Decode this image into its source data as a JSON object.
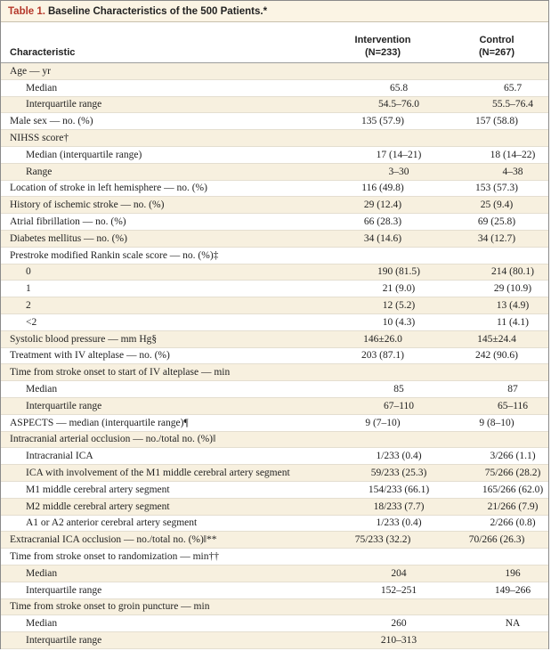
{
  "table": {
    "number": "Table 1.",
    "title": "Baseline Characteristics of the 500 Patients.*",
    "headers": {
      "characteristic": "Characteristic",
      "intervention": "Intervention",
      "intervention_n": "(N=233)",
      "control": "Control",
      "control_n": "(N=267)"
    },
    "rows": [
      {
        "label": "Age — yr",
        "intervention": "",
        "control": "",
        "indent": false
      },
      {
        "label": "Median",
        "intervention": "65.8",
        "control": "65.7",
        "indent": true
      },
      {
        "label": "Interquartile range",
        "intervention": "54.5–76.0",
        "control": "55.5–76.4",
        "indent": true
      },
      {
        "label": "Male sex — no. (%)",
        "intervention": "135 (57.9)",
        "control": "157 (58.8)",
        "indent": false
      },
      {
        "label": "NIHSS score†",
        "intervention": "",
        "control": "",
        "indent": false
      },
      {
        "label": "Median (interquartile range)",
        "intervention": "17 (14–21)",
        "control": "18 (14–22)",
        "indent": true
      },
      {
        "label": "Range",
        "intervention": "3–30",
        "control": "4–38",
        "indent": true
      },
      {
        "label": "Location of stroke in left hemisphere — no. (%)",
        "intervention": "116 (49.8)",
        "control": "153 (57.3)",
        "indent": false
      },
      {
        "label": "History of ischemic stroke — no. (%)",
        "intervention": "29 (12.4)",
        "control": "25 (9.4)",
        "indent": false
      },
      {
        "label": "Atrial fibrillation — no. (%)",
        "intervention": "66 (28.3)",
        "control": "69 (25.8)",
        "indent": false
      },
      {
        "label": "Diabetes mellitus — no. (%)",
        "intervention": "34 (14.6)",
        "control": "34 (12.7)",
        "indent": false
      },
      {
        "label": "Prestroke modified Rankin scale score — no. (%)‡",
        "intervention": "",
        "control": "",
        "indent": false
      },
      {
        "label": "0",
        "intervention": "190 (81.5)",
        "control": "214 (80.1)",
        "indent": true
      },
      {
        "label": "1",
        "intervention": "21 (9.0)",
        "control": "29 (10.9)",
        "indent": true
      },
      {
        "label": "2",
        "intervention": "12 (5.2)",
        "control": "13 (4.9)",
        "indent": true
      },
      {
        "label": "<2",
        "intervention": "10 (4.3)",
        "control": "11 (4.1)",
        "indent": true
      },
      {
        "label": "Systolic blood pressure — mm Hg§",
        "intervention": "146±26.0",
        "control": "145±24.4",
        "indent": false
      },
      {
        "label": "Treatment with IV alteplase — no. (%)",
        "intervention": "203 (87.1)",
        "control": "242 (90.6)",
        "indent": false
      },
      {
        "label": "Time from stroke onset to start of IV alteplase — min",
        "intervention": "",
        "control": "",
        "indent": false
      },
      {
        "label": "Median",
        "intervention": "85",
        "control": "87",
        "indent": true
      },
      {
        "label": "Interquartile range",
        "intervention": "67–110",
        "control": "65–116",
        "indent": true
      },
      {
        "label": "ASPECTS — median (interquartile range)¶",
        "intervention": "9 (7–10)",
        "control": "9 (8–10)",
        "indent": false
      },
      {
        "label": "Intracranial arterial occlusion — no./total no. (%)‖",
        "intervention": "",
        "control": "",
        "indent": false
      },
      {
        "label": "Intracranial ICA",
        "intervention": "1/233 (0.4)",
        "control": "3/266 (1.1)",
        "indent": true
      },
      {
        "label": "ICA with involvement of the M1 middle cerebral artery segment",
        "intervention": "59/233 (25.3)",
        "control": "75/266 (28.2)",
        "indent": true
      },
      {
        "label": "M1 middle cerebral artery segment",
        "intervention": "154/233 (66.1)",
        "control": "165/266 (62.0)",
        "indent": true
      },
      {
        "label": "M2 middle cerebral artery segment",
        "intervention": "18/233 (7.7)",
        "control": "21/266 (7.9)",
        "indent": true
      },
      {
        "label": "A1 or A2 anterior cerebral artery segment",
        "intervention": "1/233 (0.4)",
        "control": "2/266 (0.8)",
        "indent": true
      },
      {
        "label": "Extracranial ICA occlusion — no./total no. (%)‖**",
        "intervention": "75/233 (32.2)",
        "control": "70/266 (26.3)",
        "indent": false
      },
      {
        "label": "Time from stroke onset to randomization — min††",
        "intervention": "",
        "control": "",
        "indent": false
      },
      {
        "label": "Median",
        "intervention": "204",
        "control": "196",
        "indent": true
      },
      {
        "label": "Interquartile range",
        "intervention": "152–251",
        "control": "149–266",
        "indent": true
      },
      {
        "label": "Time from stroke onset to groin puncture — min",
        "intervention": "",
        "control": "",
        "indent": false
      },
      {
        "label": "Median",
        "intervention": "260",
        "control": "NA",
        "indent": true
      },
      {
        "label": "Interquartile range",
        "intervention": "210–313",
        "control": "",
        "indent": true
      }
    ]
  }
}
